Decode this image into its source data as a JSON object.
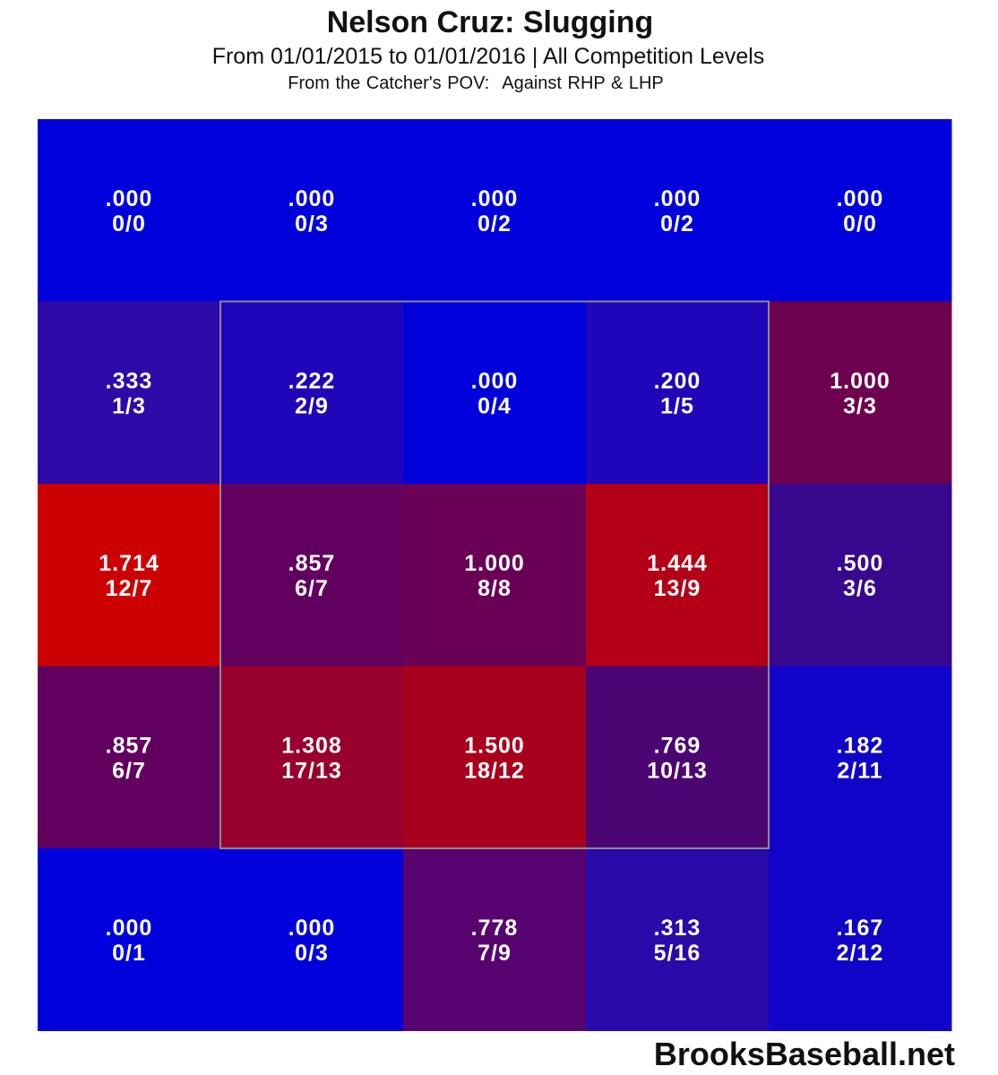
{
  "chart_data": {
    "type": "heatmap",
    "title": "Nelson Cruz: Slugging",
    "subtitle": "From 01/01/2015 to 01/01/2016 | All Competition Levels",
    "note_pov": "From the Catcher's POV:",
    "note_pitchers": "Against RHP & LHP",
    "rows": 5,
    "cols": 5,
    "strike_zone": {
      "rows": [
        1,
        3
      ],
      "cols": [
        1,
        3
      ]
    },
    "cells": [
      [
        {
          "value": ".000",
          "ratio": "0/0",
          "color": "#0000dd"
        },
        {
          "value": ".000",
          "ratio": "0/3",
          "color": "#0000dd"
        },
        {
          "value": ".000",
          "ratio": "0/2",
          "color": "#0000dd"
        },
        {
          "value": ".000",
          "ratio": "0/2",
          "color": "#0000dd"
        },
        {
          "value": ".000",
          "ratio": "0/0",
          "color": "#0000dd"
        }
      ],
      [
        {
          "value": ".333",
          "ratio": "1/3",
          "color": "#2e0aa8"
        },
        {
          "value": ".222",
          "ratio": "2/9",
          "color": "#1f06b8"
        },
        {
          "value": ".000",
          "ratio": "0/4",
          "color": "#0000dd"
        },
        {
          "value": ".200",
          "ratio": "1/5",
          "color": "#1f06b8"
        },
        {
          "value": "1.000",
          "ratio": "3/3",
          "color": "#6e0050"
        }
      ],
      [
        {
          "value": "1.714",
          "ratio": "12/7",
          "color": "#cc0000"
        },
        {
          "value": ".857",
          "ratio": "6/7",
          "color": "#620060"
        },
        {
          "value": "1.000",
          "ratio": "8/8",
          "color": "#6a0055"
        },
        {
          "value": "1.444",
          "ratio": "13/9",
          "color": "#b30016"
        },
        {
          "value": ".500",
          "ratio": "3/6",
          "color": "#38088e"
        }
      ],
      [
        {
          "value": ".857",
          "ratio": "6/7",
          "color": "#620060"
        },
        {
          "value": "1.308",
          "ratio": "17/13",
          "color": "#98002d"
        },
        {
          "value": "1.500",
          "ratio": "18/12",
          "color": "#a8001c"
        },
        {
          "value": ".769",
          "ratio": "10/13",
          "color": "#4c0673"
        },
        {
          "value": ".182",
          "ratio": "2/11",
          "color": "#1004c8"
        }
      ],
      [
        {
          "value": ".000",
          "ratio": "0/1",
          "color": "#0000dd"
        },
        {
          "value": ".000",
          "ratio": "0/3",
          "color": "#0000dd"
        },
        {
          "value": ".778",
          "ratio": "7/9",
          "color": "#580470"
        },
        {
          "value": ".313",
          "ratio": "5/16",
          "color": "#2a0aa8"
        },
        {
          "value": ".167",
          "ratio": "2/12",
          "color": "#1004c8"
        }
      ]
    ]
  },
  "credit": "BrooksBaseball.net"
}
